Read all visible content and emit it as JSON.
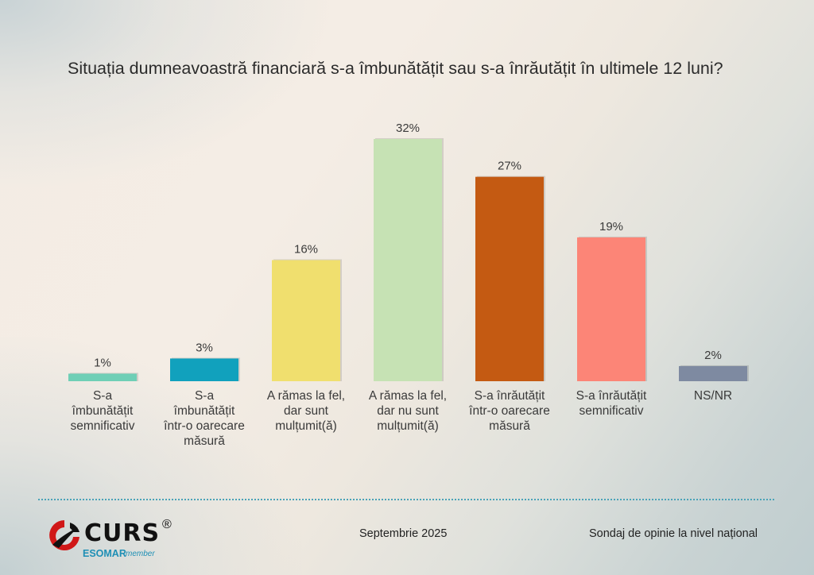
{
  "chart_data": {
    "type": "bar",
    "title": "Situația dumneavoastră financiară s-a îmbunătățit sau s-a înrăutățit în ultimele 12 luni?",
    "categories": [
      "S-a\nîmbunătățit\nsemnificativ",
      "S-a\nîmbunătățit\nîntr-o oarecare\nmăsură",
      "A rămas la fel,\ndar sunt\nmulțumit(ă)",
      "A rămas la fel,\ndar nu sunt\nmulțumit(ă)",
      "S-a înrăutățit\nîntr-o oarecare\nmăsură",
      "S-a înrăutățit\nsemnificativ",
      "NS/NR"
    ],
    "values": [
      1,
      3,
      16,
      32,
      27,
      19,
      2
    ],
    "value_labels": [
      "1%",
      "3%",
      "16%",
      "32%",
      "27%",
      "19%",
      "2%"
    ],
    "colors": [
      "#6fcfb6",
      "#11a1bd",
      "#f0df6e",
      "#c6e2b4",
      "#c45a12",
      "#fc8577",
      "#7e8aa1"
    ],
    "ylim": [
      0,
      32
    ],
    "grid": false,
    "legend": "none"
  },
  "footer": {
    "logo_text": "CURS",
    "logo_registered": "®",
    "logo_sub": "ESOMAR",
    "logo_member": "member",
    "date": "Septembrie 2025",
    "note": "Sondaj de opinie la nivel național"
  }
}
